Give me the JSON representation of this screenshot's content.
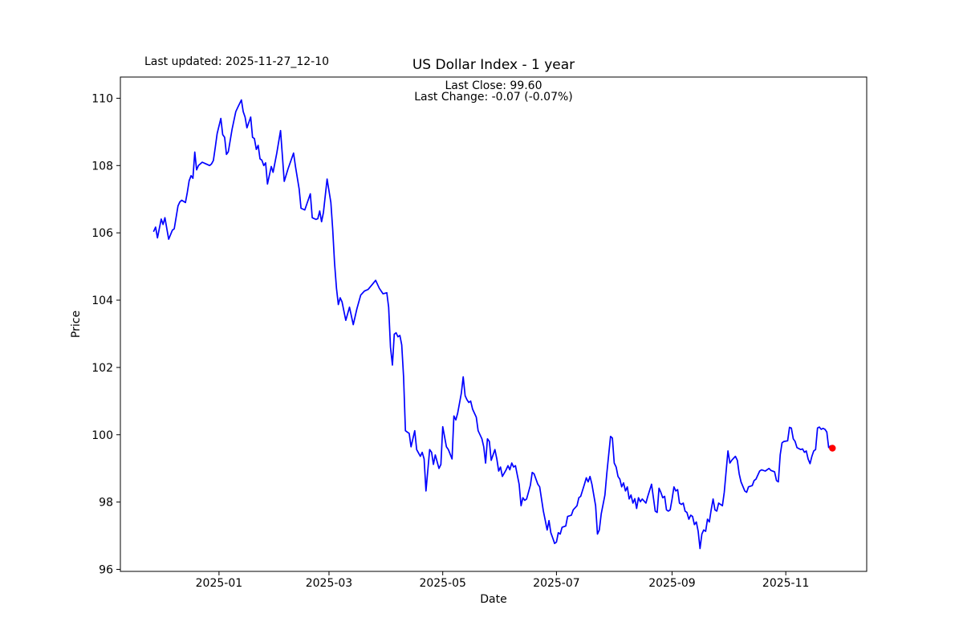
{
  "header": {
    "last_updated": "Last updated: 2025-11-27_12-10",
    "title": "US Dollar Index - 1 year",
    "subtitle_line1": "Last Close: 99.60",
    "subtitle_line2": "Last Change: -0.07 (-0.07%)"
  },
  "chart_data": {
    "type": "line",
    "title": "US Dollar Index - 1 year",
    "xlabel": "Date",
    "ylabel": "Price",
    "series_name": "US Dollar Index close",
    "line_color": "#0000ff",
    "last_point_color": "#ff0000",
    "axis_color": "#000000",
    "grid": false,
    "legend": "none",
    "x_unit": "days since 2024-11-27",
    "x_start_date": "2024-11-27",
    "x_end_date": "2025-11-26",
    "xlim_days": [
      -17.9,
      382.4
    ],
    "ylim": [
      95.94,
      110.63
    ],
    "x_ticks": [
      {
        "label": "2025-01",
        "day": 35
      },
      {
        "label": "2025-03",
        "day": 94
      },
      {
        "label": "2025-05",
        "day": 155
      },
      {
        "label": "2025-07",
        "day": 216
      },
      {
        "label": "2025-09",
        "day": 278
      },
      {
        "label": "2025-11",
        "day": 339
      }
    ],
    "y_ticks": [
      96,
      98,
      100,
      102,
      104,
      106,
      108,
      110
    ],
    "last_close": 99.6,
    "last_change": -0.07,
    "last_change_pct": "-0.07%",
    "last_point": {
      "day": 364,
      "value": 99.6
    },
    "points": [
      [
        0,
        106.05
      ],
      [
        1,
        106.17
      ],
      [
        2,
        105.85
      ],
      [
        4,
        106.41
      ],
      [
        5,
        106.25
      ],
      [
        6,
        106.45
      ],
      [
        8,
        105.81
      ],
      [
        10,
        106.08
      ],
      [
        11,
        106.12
      ],
      [
        13,
        106.8
      ],
      [
        14,
        106.92
      ],
      [
        15,
        106.97
      ],
      [
        17,
        106.9
      ],
      [
        18,
        107.2
      ],
      [
        19,
        107.55
      ],
      [
        20,
        107.7
      ],
      [
        21,
        107.62
      ],
      [
        22,
        108.4
      ],
      [
        23,
        107.87
      ],
      [
        24,
        108.0
      ],
      [
        26,
        108.1
      ],
      [
        28,
        108.05
      ],
      [
        30,
        108.0
      ],
      [
        31,
        108.05
      ],
      [
        32,
        108.15
      ],
      [
        33,
        108.55
      ],
      [
        34,
        108.95
      ],
      [
        36,
        109.4
      ],
      [
        37,
        108.92
      ],
      [
        38,
        108.84
      ],
      [
        39,
        108.33
      ],
      [
        40,
        108.41
      ],
      [
        42,
        109.08
      ],
      [
        44,
        109.6
      ],
      [
        45,
        109.72
      ],
      [
        47,
        109.95
      ],
      [
        48,
        109.6
      ],
      [
        49,
        109.44
      ],
      [
        50,
        109.12
      ],
      [
        52,
        109.44
      ],
      [
        53,
        108.84
      ],
      [
        54,
        108.8
      ],
      [
        55,
        108.48
      ],
      [
        56,
        108.6
      ],
      [
        57,
        108.2
      ],
      [
        58,
        108.16
      ],
      [
        59,
        108.0
      ],
      [
        60,
        108.08
      ],
      [
        61,
        107.45
      ],
      [
        63,
        107.97
      ],
      [
        64,
        107.8
      ],
      [
        66,
        108.37
      ],
      [
        68,
        109.04
      ],
      [
        70,
        107.53
      ],
      [
        72,
        107.9
      ],
      [
        75,
        108.37
      ],
      [
        76,
        107.97
      ],
      [
        78,
        107.3
      ],
      [
        79,
        106.73
      ],
      [
        81,
        106.68
      ],
      [
        84,
        107.16
      ],
      [
        85,
        106.45
      ],
      [
        87,
        106.4
      ],
      [
        88,
        106.42
      ],
      [
        89,
        106.65
      ],
      [
        90,
        106.33
      ],
      [
        91,
        106.6
      ],
      [
        93,
        107.6
      ],
      [
        95,
        106.9
      ],
      [
        96,
        106.1
      ],
      [
        97,
        105.1
      ],
      [
        98,
        104.35
      ],
      [
        99,
        103.87
      ],
      [
        100,
        104.07
      ],
      [
        101,
        103.95
      ],
      [
        103,
        103.4
      ],
      [
        105,
        103.79
      ],
      [
        107,
        103.27
      ],
      [
        109,
        103.75
      ],
      [
        111,
        104.15
      ],
      [
        113,
        104.27
      ],
      [
        115,
        104.32
      ],
      [
        117,
        104.45
      ],
      [
        119,
        104.59
      ],
      [
        121,
        104.35
      ],
      [
        123,
        104.19
      ],
      [
        125,
        104.22
      ],
      [
        126,
        103.79
      ],
      [
        127,
        102.6
      ],
      [
        128,
        102.07
      ],
      [
        129,
        102.99
      ],
      [
        130,
        103.03
      ],
      [
        131,
        102.91
      ],
      [
        132,
        102.95
      ],
      [
        133,
        102.67
      ],
      [
        134,
        101.72
      ],
      [
        135,
        100.12
      ],
      [
        136,
        100.08
      ],
      [
        137,
        100.04
      ],
      [
        138,
        99.64
      ],
      [
        140,
        100.12
      ],
      [
        141,
        99.56
      ],
      [
        143,
        99.36
      ],
      [
        144,
        99.48
      ],
      [
        145,
        99.28
      ],
      [
        146,
        98.33
      ],
      [
        148,
        99.56
      ],
      [
        149,
        99.48
      ],
      [
        150,
        99.12
      ],
      [
        151,
        99.4
      ],
      [
        153,
        99.0
      ],
      [
        154,
        99.12
      ],
      [
        155,
        100.24
      ],
      [
        157,
        99.64
      ],
      [
        158,
        99.56
      ],
      [
        160,
        99.28
      ],
      [
        161,
        100.56
      ],
      [
        162,
        100.44
      ],
      [
        163,
        100.64
      ],
      [
        165,
        101.24
      ],
      [
        166,
        101.72
      ],
      [
        167,
        101.16
      ],
      [
        168,
        101.04
      ],
      [
        169,
        100.96
      ],
      [
        170,
        101.0
      ],
      [
        171,
        100.76
      ],
      [
        173,
        100.52
      ],
      [
        174,
        100.12
      ],
      [
        176,
        99.88
      ],
      [
        177,
        99.64
      ],
      [
        178,
        99.16
      ],
      [
        179,
        99.88
      ],
      [
        180,
        99.8
      ],
      [
        181,
        99.24
      ],
      [
        183,
        99.56
      ],
      [
        184,
        99.28
      ],
      [
        185,
        98.92
      ],
      [
        186,
        99.04
      ],
      [
        187,
        98.76
      ],
      [
        189,
        98.96
      ],
      [
        190,
        99.08
      ],
      [
        191,
        98.96
      ],
      [
        192,
        99.16
      ],
      [
        193,
        99.04
      ],
      [
        194,
        99.08
      ],
      [
        196,
        98.53
      ],
      [
        197,
        97.89
      ],
      [
        198,
        98.13
      ],
      [
        199,
        98.05
      ],
      [
        200,
        98.09
      ],
      [
        202,
        98.5
      ],
      [
        203,
        98.88
      ],
      [
        204,
        98.84
      ],
      [
        206,
        98.53
      ],
      [
        207,
        98.45
      ],
      [
        209,
        97.73
      ],
      [
        210,
        97.45
      ],
      [
        211,
        97.17
      ],
      [
        212,
        97.45
      ],
      [
        213,
        97.09
      ],
      [
        214,
        96.93
      ],
      [
        215,
        96.77
      ],
      [
        216,
        96.81
      ],
      [
        217,
        97.09
      ],
      [
        218,
        97.05
      ],
      [
        219,
        97.25
      ],
      [
        221,
        97.29
      ],
      [
        222,
        97.57
      ],
      [
        224,
        97.61
      ],
      [
        225,
        97.77
      ],
      [
        227,
        97.89
      ],
      [
        228,
        98.13
      ],
      [
        229,
        98.17
      ],
      [
        231,
        98.53
      ],
      [
        232,
        98.72
      ],
      [
        233,
        98.6
      ],
      [
        234,
        98.76
      ],
      [
        235,
        98.53
      ],
      [
        236,
        98.21
      ],
      [
        237,
        97.89
      ],
      [
        238,
        97.05
      ],
      [
        239,
        97.17
      ],
      [
        240,
        97.65
      ],
      [
        242,
        98.21
      ],
      [
        243,
        98.84
      ],
      [
        245,
        99.95
      ],
      [
        246,
        99.9
      ],
      [
        247,
        99.16
      ],
      [
        248,
        99.04
      ],
      [
        249,
        98.76
      ],
      [
        250,
        98.68
      ],
      [
        251,
        98.45
      ],
      [
        252,
        98.57
      ],
      [
        253,
        98.33
      ],
      [
        254,
        98.45
      ],
      [
        255,
        98.09
      ],
      [
        256,
        98.21
      ],
      [
        257,
        97.97
      ],
      [
        258,
        98.1
      ],
      [
        259,
        97.81
      ],
      [
        260,
        98.13
      ],
      [
        261,
        98.01
      ],
      [
        262,
        98.09
      ],
      [
        264,
        97.97
      ],
      [
        265,
        98.17
      ],
      [
        267,
        98.53
      ],
      [
        269,
        97.73
      ],
      [
        270,
        97.69
      ],
      [
        271,
        98.41
      ],
      [
        272,
        98.29
      ],
      [
        273,
        98.13
      ],
      [
        274,
        98.17
      ],
      [
        275,
        97.77
      ],
      [
        276,
        97.73
      ],
      [
        277,
        97.77
      ],
      [
        278,
        98.09
      ],
      [
        279,
        98.45
      ],
      [
        280,
        98.33
      ],
      [
        281,
        98.37
      ],
      [
        282,
        97.97
      ],
      [
        283,
        97.93
      ],
      [
        284,
        97.97
      ],
      [
        285,
        97.73
      ],
      [
        286,
        97.69
      ],
      [
        287,
        97.49
      ],
      [
        288,
        97.61
      ],
      [
        289,
        97.57
      ],
      [
        290,
        97.33
      ],
      [
        291,
        97.41
      ],
      [
        292,
        97.13
      ],
      [
        293,
        96.62
      ],
      [
        294,
        97.05
      ],
      [
        295,
        97.17
      ],
      [
        296,
        97.13
      ],
      [
        297,
        97.49
      ],
      [
        298,
        97.41
      ],
      [
        299,
        97.77
      ],
      [
        300,
        98.09
      ],
      [
        301,
        97.77
      ],
      [
        302,
        97.73
      ],
      [
        303,
        97.97
      ],
      [
        305,
        97.89
      ],
      [
        306,
        98.29
      ],
      [
        308,
        99.52
      ],
      [
        309,
        99.16
      ],
      [
        310,
        99.24
      ],
      [
        312,
        99.36
      ],
      [
        313,
        99.24
      ],
      [
        314,
        98.84
      ],
      [
        315,
        98.6
      ],
      [
        317,
        98.33
      ],
      [
        318,
        98.29
      ],
      [
        319,
        98.45
      ],
      [
        321,
        98.49
      ],
      [
        322,
        98.64
      ],
      [
        323,
        98.68
      ],
      [
        325,
        98.92
      ],
      [
        326,
        98.96
      ],
      [
        328,
        98.92
      ],
      [
        330,
        99.0
      ],
      [
        331,
        98.94
      ],
      [
        333,
        98.9
      ],
      [
        334,
        98.64
      ],
      [
        335,
        98.6
      ],
      [
        336,
        99.4
      ],
      [
        337,
        99.76
      ],
      [
        338,
        99.8
      ],
      [
        340,
        99.82
      ],
      [
        341,
        100.22
      ],
      [
        342,
        100.2
      ],
      [
        343,
        99.88
      ],
      [
        344,
        99.8
      ],
      [
        345,
        99.62
      ],
      [
        347,
        99.56
      ],
      [
        348,
        99.58
      ],
      [
        349,
        99.48
      ],
      [
        350,
        99.52
      ],
      [
        351,
        99.28
      ],
      [
        352,
        99.14
      ],
      [
        353,
        99.36
      ],
      [
        354,
        99.52
      ],
      [
        355,
        99.56
      ],
      [
        356,
        100.2
      ],
      [
        357,
        100.23
      ],
      [
        358,
        100.16
      ],
      [
        359,
        100.19
      ],
      [
        360,
        100.16
      ],
      [
        361,
        100.08
      ],
      [
        362,
        99.62
      ],
      [
        363,
        99.67
      ],
      [
        364,
        99.6
      ]
    ]
  }
}
